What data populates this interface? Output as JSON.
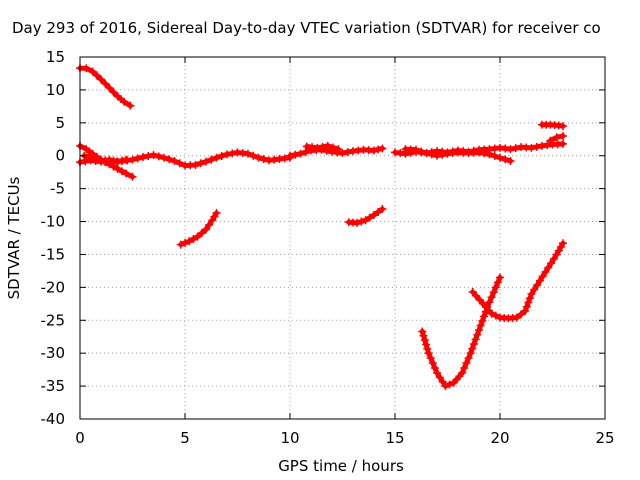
{
  "chart_data": {
    "type": "scatter",
    "title": "Day 293 of 2016, Sidereal Day-to-day VTEC variation (SDTVAR) for receiver co",
    "xlabel": "GPS time / hours",
    "ylabel": "SDTVAR / TECUs",
    "xlim": [
      0,
      25
    ],
    "ylim": [
      -40,
      15
    ],
    "xticks": [
      "0",
      "5",
      "10",
      "15",
      "20",
      "25"
    ],
    "yticks": [
      "15",
      "10",
      "5",
      "0",
      "-5",
      "-10",
      "-15",
      "-20",
      "-25",
      "-30",
      "-35",
      "-40"
    ],
    "grid": true,
    "marker": "+",
    "color": "#ff0000",
    "series": [
      {
        "x": [
          0,
          0.3,
          0.6,
          1.0,
          1.4,
          1.8,
          2.1,
          2.4
        ],
        "y": [
          13.3,
          13.3,
          12.8,
          11.6,
          10.3,
          9.0,
          8.2,
          7.6
        ]
      },
      {
        "x": [
          0,
          0.3,
          0.6,
          1.0,
          1.4,
          1.8,
          2.2,
          2.5
        ],
        "y": [
          1.5,
          1.0,
          0.3,
          -0.6,
          -1.3,
          -2.0,
          -2.7,
          -3.2
        ]
      },
      {
        "x": [
          0,
          0.5,
          1.0,
          1.5,
          2.0,
          2.5,
          3.0,
          3.5,
          4.0,
          4.5,
          5.0,
          5.5,
          6.0,
          6.5,
          7.0,
          7.5,
          8.0,
          8.5,
          9.0,
          9.5,
          10.0
        ],
        "y": [
          -1.0,
          -0.7,
          -0.9,
          -1.0,
          -0.8,
          -0.6,
          -0.2,
          0.1,
          -0.3,
          -0.8,
          -1.5,
          -1.4,
          -0.9,
          -0.3,
          0.2,
          0.5,
          0.3,
          -0.3,
          -0.7,
          -0.5,
          -0.3
        ]
      },
      {
        "x": [
          0.2,
          0.6,
          1.0,
          1.4,
          1.8,
          2.2
        ],
        "y": [
          0.0,
          -0.4,
          -0.8,
          -0.6,
          -0.9,
          -0.6
        ]
      },
      {
        "x": [
          10.0,
          10.5,
          11.0,
          11.5,
          12.0,
          12.5,
          13.0,
          13.5,
          14.0,
          14.4
        ],
        "y": [
          0.0,
          0.3,
          0.8,
          0.9,
          0.6,
          0.4,
          0.7,
          0.9,
          0.8,
          1.1
        ]
      },
      {
        "x": [
          10.8,
          11.3,
          11.8,
          12.3
        ],
        "y": [
          1.4,
          1.2,
          1.5,
          1.0
        ]
      },
      {
        "x": [
          4.8,
          5.2,
          5.6,
          6.0,
          6.3,
          6.5
        ],
        "y": [
          -13.5,
          -13.0,
          -12.3,
          -11.2,
          -9.8,
          -8.7
        ]
      },
      {
        "x": [
          12.8,
          13.2,
          13.6,
          14.0,
          14.4
        ],
        "y": [
          -10.1,
          -10.2,
          -9.8,
          -9.0,
          -8.1
        ]
      },
      {
        "x": [
          15.0,
          15.5,
          16.0,
          16.5,
          17.0,
          17.5,
          18.0,
          18.5,
          19.0,
          19.5,
          20.0,
          20.5,
          21.0,
          21.5,
          22.0,
          22.5,
          23.0
        ],
        "y": [
          0.5,
          0.3,
          0.6,
          0.4,
          0.7,
          0.5,
          0.8,
          0.6,
          0.9,
          1.0,
          1.2,
          1.0,
          1.3,
          1.2,
          1.5,
          1.7,
          1.8
        ]
      },
      {
        "x": [
          15.5,
          16.0,
          16.5,
          17.0,
          17.5,
          18.0,
          18.5,
          19.0,
          19.5,
          20.0,
          20.5
        ],
        "y": [
          1.0,
          0.9,
          0.4,
          0.0,
          0.3,
          0.5,
          0.4,
          0.5,
          0.2,
          -0.3,
          -0.8
        ]
      },
      {
        "x": [
          22.0,
          22.4,
          22.8,
          23.0
        ],
        "y": [
          4.7,
          4.7,
          4.6,
          4.5
        ]
      },
      {
        "x": [
          22.4,
          22.7,
          23.0
        ],
        "y": [
          2.3,
          2.8,
          3.0
        ]
      },
      {
        "x": [
          16.3,
          16.6,
          17.0,
          17.4,
          17.8,
          18.2,
          18.6,
          19.0,
          19.4,
          19.8,
          20.0
        ],
        "y": [
          -26.7,
          -30.0,
          -33.0,
          -35.0,
          -34.5,
          -33.0,
          -30.0,
          -26.5,
          -23.0,
          -20.0,
          -18.5
        ]
      },
      {
        "x": [
          18.7,
          19.2,
          19.6,
          20.0,
          20.4,
          20.8,
          21.2,
          21.5,
          21.9,
          22.3,
          22.7,
          23.0
        ],
        "y": [
          -20.7,
          -22.5,
          -24.0,
          -24.6,
          -24.7,
          -24.6,
          -23.6,
          -21.0,
          -19.0,
          -17.0,
          -15.0,
          -13.3
        ]
      }
    ]
  }
}
